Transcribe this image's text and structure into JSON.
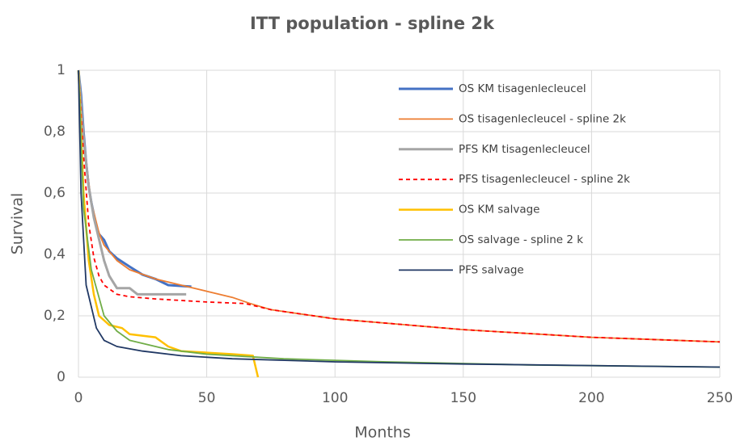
{
  "chart_data": {
    "type": "line",
    "title": "ITT population  - spline 2k",
    "x_label": "Months",
    "y_label": "Survival",
    "xlim": [
      0,
      250
    ],
    "xticks": [
      0,
      50,
      100,
      150,
      200,
      250
    ],
    "ylim": [
      0,
      1
    ],
    "yticks": [
      0,
      {
        "value": 0.2,
        "label": "0,2"
      },
      {
        "value": 0.4,
        "label": "0,4"
      },
      {
        "value": 0.6,
        "label": "0,6"
      },
      {
        "value": 0.8,
        "label": "0,8"
      },
      1
    ],
    "grid": true,
    "legend": "upper right",
    "series": [
      {
        "name": "OS KM tisagenlecleucel",
        "color": "#4472c4",
        "width": 3,
        "dash": false,
        "x": [
          0,
          1,
          2,
          3,
          4,
          5,
          6,
          7,
          8,
          10,
          12,
          15,
          20,
          25,
          30,
          35,
          44
        ],
        "values": [
          1,
          0.92,
          0.8,
          0.7,
          0.62,
          0.57,
          0.53,
          0.49,
          0.466,
          0.447,
          0.41,
          0.387,
          0.36,
          0.334,
          0.32,
          0.3,
          0.295
        ]
      },
      {
        "name": "OS tisagenlecleucel - spline 2k",
        "color": "#ed7d31",
        "width": 1.8,
        "dash": false,
        "x": [
          0,
          1,
          2,
          3,
          5,
          8,
          10,
          15,
          20,
          30,
          40,
          50,
          60,
          67,
          75,
          100,
          150,
          200,
          250
        ],
        "values": [
          1,
          0.9,
          0.8,
          0.7,
          0.57,
          0.47,
          0.43,
          0.38,
          0.35,
          0.32,
          0.3,
          0.28,
          0.26,
          0.24,
          0.22,
          0.19,
          0.155,
          0.13,
          0.115
        ]
      },
      {
        "name": "PFS KM tisagenlecleucel",
        "color": "#a5a5a5",
        "width": 3,
        "dash": false,
        "x": [
          0,
          2,
          4,
          6,
          8,
          10,
          12,
          15,
          20,
          23,
          30,
          42
        ],
        "values": [
          1,
          0.78,
          0.62,
          0.52,
          0.45,
          0.38,
          0.33,
          0.29,
          0.29,
          0.27,
          0.27,
          0.27
        ]
      },
      {
        "name": "PFS tisagenlecleucel - spline 2k",
        "color": "#ff0000",
        "width": 1.8,
        "dash": true,
        "x": [
          0,
          2,
          4,
          6,
          8,
          10,
          15,
          20,
          30,
          50,
          65,
          75,
          100,
          150,
          200,
          250
        ],
        "values": [
          1,
          0.72,
          0.5,
          0.39,
          0.33,
          0.3,
          0.27,
          0.262,
          0.255,
          0.245,
          0.24,
          0.22,
          0.19,
          0.155,
          0.13,
          0.115
        ]
      },
      {
        "name": "OS KM salvage",
        "color": "#ffc000",
        "width": 2.5,
        "dash": false,
        "x": [
          0,
          2,
          4,
          6,
          8,
          12,
          17,
          20,
          30,
          35,
          40,
          50,
          60,
          68,
          70
        ],
        "values": [
          1,
          0.6,
          0.38,
          0.27,
          0.2,
          0.17,
          0.16,
          0.14,
          0.13,
          0.1,
          0.085,
          0.08,
          0.075,
          0.07,
          0
        ]
      },
      {
        "name": "OS salvage - spline 2 k",
        "color": "#70ad47",
        "width": 1.8,
        "dash": false,
        "x": [
          0,
          2,
          5,
          10,
          15,
          20,
          35,
          50,
          80,
          120,
          175,
          250
        ],
        "values": [
          1,
          0.55,
          0.35,
          0.2,
          0.15,
          0.12,
          0.09,
          0.075,
          0.06,
          0.05,
          0.04,
          0.033
        ]
      },
      {
        "name": "PFS salvage",
        "color": "#203864",
        "width": 1.8,
        "dash": false,
        "x": [
          0,
          1,
          3,
          7,
          10,
          15,
          25,
          40,
          60,
          100,
          150,
          200,
          250
        ],
        "values": [
          1,
          0.6,
          0.3,
          0.16,
          0.12,
          0.1,
          0.085,
          0.07,
          0.06,
          0.05,
          0.043,
          0.038,
          0.033
        ]
      }
    ]
  }
}
